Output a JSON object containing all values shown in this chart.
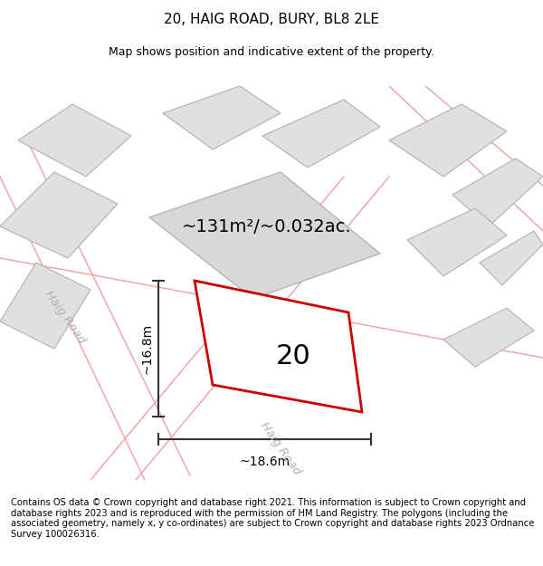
{
  "title": "20, HAIG ROAD, BURY, BL8 2LE",
  "subtitle": "Map shows position and indicative extent of the property.",
  "footer": "Contains OS data © Crown copyright and database right 2021. This information is subject to Crown copyright and database rights 2023 and is reproduced with the permission of HM Land Registry. The polygons (including the associated geometry, namely x, y co-ordinates) are subject to Crown copyright and database rights 2023 Ordnance Survey 100026316.",
  "area_label": "~131m²/~0.032ac.",
  "property_number": "20",
  "width_label": "~18.6m",
  "height_label": "~16.8m",
  "road_label_1": "Haig Road",
  "road_label_2": "Haig Road",
  "bg_color": "#ffffff",
  "map_bg": "#f0f0f0",
  "building_fill": "#e0e0e0",
  "building_edge": "#b0b0b0",
  "road_line_color": "#f0a0a0",
  "property_outline_color": "#cc0000",
  "dim_line_color": "#333333",
  "title_fontsize": 11,
  "subtitle_fontsize": 9,
  "footer_fontsize": 7.2
}
